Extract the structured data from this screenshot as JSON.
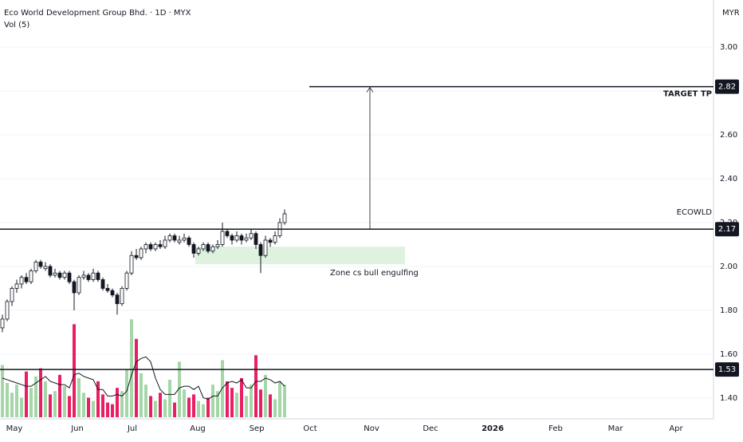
{
  "chart_data": {
    "type": "candlestick",
    "title": "Eco World Development Group Bhd. · 1D · MYX",
    "volume_title": "Vol (5)",
    "currency": "MYR",
    "symbol_label": "ECOWLD",
    "ylim": [
      1.305,
      3.215
    ],
    "yticks": [
      {
        "value": 1.4,
        "label": "1.40"
      },
      {
        "value": 1.6,
        "label": "1.60"
      },
      {
        "value": 1.8,
        "label": "1.80"
      },
      {
        "value": 2.0,
        "label": "2.00"
      },
      {
        "value": 2.2,
        "label": "2.20"
      },
      {
        "value": 2.4,
        "label": "2.40"
      },
      {
        "value": 2.6,
        "label": "2.60"
      },
      {
        "value": 2.8,
        "label": "2.80"
      },
      {
        "value": 3.0,
        "label": "3.00"
      }
    ],
    "grid": true,
    "xticks": [
      "May",
      "Jun",
      "Jul",
      "Aug",
      "Sep",
      "Oct",
      "Nov",
      "Dec",
      "2026",
      "Feb",
      "Mar",
      "Apr"
    ],
    "candles": [
      [
        1.72,
        1.78,
        1.7,
        1.76
      ],
      [
        1.76,
        1.85,
        1.75,
        1.84
      ],
      [
        1.84,
        1.91,
        1.82,
        1.9
      ],
      [
        1.9,
        1.94,
        1.88,
        1.92
      ],
      [
        1.92,
        1.96,
        1.9,
        1.95
      ],
      [
        1.95,
        1.97,
        1.92,
        1.93
      ],
      [
        1.93,
        1.99,
        1.92,
        1.98
      ],
      [
        1.98,
        2.03,
        1.97,
        2.02
      ],
      [
        2.02,
        2.03,
        1.99,
        2.0
      ],
      [
        1.99,
        2.02,
        1.98,
        2.0
      ],
      [
        2.0,
        2.01,
        1.95,
        1.96
      ],
      [
        1.96,
        1.99,
        1.95,
        1.97
      ],
      [
        1.97,
        1.98,
        1.94,
        1.95
      ],
      [
        1.95,
        1.98,
        1.94,
        1.97
      ],
      [
        1.97,
        1.98,
        1.92,
        1.93
      ],
      [
        1.93,
        1.94,
        1.8,
        1.88
      ],
      [
        1.88,
        1.96,
        1.87,
        1.95
      ],
      [
        1.95,
        1.98,
        1.94,
        1.96
      ],
      [
        1.96,
        1.97,
        1.93,
        1.94
      ],
      [
        1.94,
        1.99,
        1.93,
        1.97
      ],
      [
        1.97,
        1.98,
        1.93,
        1.94
      ],
      [
        1.94,
        1.95,
        1.89,
        1.9
      ],
      [
        1.9,
        1.92,
        1.88,
        1.89
      ],
      [
        1.89,
        1.9,
        1.86,
        1.87
      ],
      [
        1.87,
        1.88,
        1.78,
        1.83
      ],
      [
        1.83,
        1.91,
        1.82,
        1.9
      ],
      [
        1.9,
        1.98,
        1.89,
        1.97
      ],
      [
        1.97,
        2.07,
        1.96,
        2.05
      ],
      [
        2.05,
        2.08,
        2.03,
        2.04
      ],
      [
        2.04,
        2.09,
        2.03,
        2.08
      ],
      [
        2.08,
        2.11,
        2.06,
        2.1
      ],
      [
        2.1,
        2.11,
        2.07,
        2.08
      ],
      [
        2.08,
        2.11,
        2.07,
        2.1
      ],
      [
        2.1,
        2.12,
        2.08,
        2.09
      ],
      [
        2.09,
        2.14,
        2.08,
        2.12
      ],
      [
        2.12,
        2.15,
        2.11,
        2.14
      ],
      [
        2.14,
        2.15,
        2.11,
        2.12
      ],
      [
        2.11,
        2.14,
        2.1,
        2.12
      ],
      [
        2.12,
        2.15,
        2.11,
        2.13
      ],
      [
        2.13,
        2.14,
        2.09,
        2.1
      ],
      [
        2.1,
        2.11,
        2.04,
        2.06
      ],
      [
        2.06,
        2.09,
        2.05,
        2.08
      ],
      [
        2.08,
        2.11,
        2.07,
        2.1
      ],
      [
        2.1,
        2.11,
        2.06,
        2.07
      ],
      [
        2.07,
        2.1,
        2.06,
        2.09
      ],
      [
        2.09,
        2.12,
        2.08,
        2.1
      ],
      [
        2.1,
        2.2,
        2.09,
        2.16
      ],
      [
        2.16,
        2.17,
        2.13,
        2.14
      ],
      [
        2.14,
        2.15,
        2.1,
        2.12
      ],
      [
        2.12,
        2.16,
        2.11,
        2.14
      ],
      [
        2.14,
        2.15,
        2.1,
        2.12
      ],
      [
        2.12,
        2.15,
        2.11,
        2.13
      ],
      [
        2.13,
        2.17,
        2.12,
        2.15
      ],
      [
        2.15,
        2.16,
        2.08,
        2.1
      ],
      [
        2.1,
        2.11,
        1.97,
        2.05
      ],
      [
        2.05,
        2.14,
        2.04,
        2.12
      ],
      [
        2.12,
        2.13,
        2.09,
        2.11
      ],
      [
        2.11,
        2.16,
        2.1,
        2.14
      ],
      [
        2.14,
        2.22,
        2.13,
        2.2
      ],
      [
        2.2,
        2.26,
        2.19,
        2.24
      ]
    ],
    "volumes": [
      3.2,
      2.1,
      1.5,
      2.0,
      1.2,
      2.8,
      1.8,
      2.5,
      3.0,
      2.2,
      1.4,
      1.6,
      2.6,
      1.9,
      1.3,
      5.7,
      2.4,
      1.5,
      1.2,
      1.0,
      2.2,
      1.4,
      0.9,
      0.8,
      1.8,
      1.6,
      2.9,
      6.0,
      4.8,
      2.7,
      2.0,
      1.3,
      1.0,
      1.5,
      1.1,
      2.3,
      0.9,
      3.4,
      1.7,
      1.2,
      1.4,
      1.0,
      0.8,
      1.2,
      2.0,
      1.6,
      3.5,
      2.2,
      1.8,
      1.5,
      2.4,
      1.3,
      2.0,
      3.8,
      1.7,
      2.6,
      1.4,
      1.1,
      2.2,
      2.0
    ],
    "volume_ma": [
      2.4,
      2.3,
      2.2,
      2.1,
      2.0,
      1.9,
      1.9,
      2.1,
      2.3,
      2.5,
      2.2,
      2.1,
      2.0,
      2.0,
      1.8,
      2.6,
      2.7,
      2.5,
      2.4,
      2.3,
      1.7,
      1.7,
      1.3,
      1.3,
      1.4,
      1.3,
      1.6,
      2.6,
      3.4,
      3.6,
      3.7,
      3.4,
      2.4,
      1.7,
      1.4,
      1.4,
      1.4,
      1.8,
      1.9,
      1.9,
      1.7,
      1.9,
      1.2,
      1.1,
      1.3,
      1.3,
      1.8,
      2.1,
      2.2,
      2.1,
      2.3,
      1.8,
      1.8,
      2.2,
      2.2,
      2.4,
      2.3,
      2.1,
      2.2,
      1.9
    ],
    "volume_ylim": [
      0,
      6.5
    ],
    "levels": [
      2.82,
      2.17,
      1.53
    ],
    "target_label": "TARGET TP",
    "zone": {
      "low": 2.01,
      "high": 2.09,
      "label": "Zone cs bull engulfing"
    }
  }
}
